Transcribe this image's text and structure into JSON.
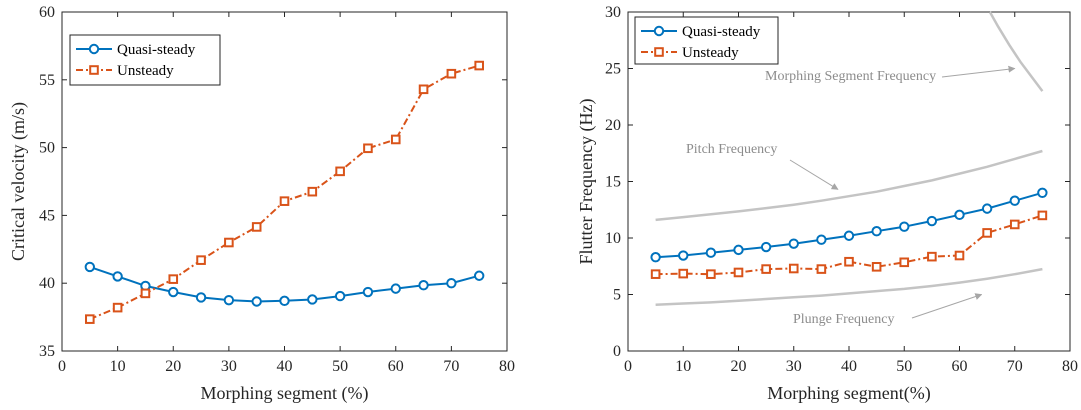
{
  "chart_data": [
    {
      "type": "line",
      "xlabel": "Morphing segment (%)",
      "ylabel": "Critical velocity (m/s)",
      "xlim": [
        0,
        80
      ],
      "ylim": [
        35,
        60
      ],
      "xticks": [
        0,
        10,
        20,
        30,
        40,
        50,
        60,
        70,
        80
      ],
      "yticks": [
        35,
        40,
        45,
        50,
        55,
        60
      ],
      "grid": false,
      "legend_position": "top-left",
      "x": [
        5,
        10,
        15,
        20,
        25,
        30,
        35,
        40,
        45,
        50,
        55,
        60,
        65,
        70,
        75
      ],
      "series": [
        {
          "name": "Quasi-steady",
          "color": "#0072BD",
          "marker": "circle",
          "line_style": "solid",
          "values": [
            41.2,
            40.5,
            39.8,
            39.35,
            38.95,
            38.75,
            38.65,
            38.7,
            38.8,
            39.05,
            39.35,
            39.6,
            39.85,
            40.0,
            40.55
          ]
        },
        {
          "name": "Unsteady",
          "color": "#D95319",
          "marker": "square",
          "line_style": "dash-dot",
          "values": [
            37.35,
            38.2,
            39.25,
            40.3,
            41.7,
            43.0,
            44.15,
            46.05,
            46.75,
            48.25,
            49.95,
            50.6,
            54.3,
            55.45,
            56.05
          ]
        }
      ]
    },
    {
      "type": "line",
      "xlabel": "Morphing segment(%)",
      "ylabel": "Flutter Frequency (Hz)",
      "xlim": [
        0,
        80
      ],
      "ylim": [
        0,
        30
      ],
      "xticks": [
        0,
        10,
        20,
        30,
        40,
        50,
        60,
        70,
        80
      ],
      "yticks": [
        0,
        5,
        10,
        15,
        20,
        25,
        30
      ],
      "grid": false,
      "legend_position": "top-left",
      "x": [
        5,
        10,
        15,
        20,
        25,
        30,
        35,
        40,
        45,
        50,
        55,
        60,
        65,
        70,
        75
      ],
      "series": [
        {
          "name": "Quasi-steady",
          "color": "#0072BD",
          "marker": "circle",
          "line_style": "solid",
          "values": [
            8.3,
            8.45,
            8.7,
            8.95,
            9.2,
            9.5,
            9.85,
            10.2,
            10.6,
            11.0,
            11.5,
            12.05,
            12.6,
            13.3,
            14.0
          ]
        },
        {
          "name": "Unsteady",
          "color": "#D95319",
          "marker": "square",
          "line_style": "dash-dot",
          "values": [
            6.8,
            6.85,
            6.8,
            6.95,
            7.25,
            7.3,
            7.25,
            7.9,
            7.45,
            7.85,
            8.35,
            8.45,
            10.45,
            11.2,
            12.0
          ]
        }
      ],
      "reference_curves": [
        {
          "label": "Morphing Segment Frequency",
          "color": "#c4c4c4",
          "x": [
            65.5,
            67,
            69,
            71,
            73,
            75
          ],
          "values": [
            30.2,
            28.7,
            27.1,
            25.6,
            24.3,
            23.0
          ]
        },
        {
          "label": "Pitch Frequency",
          "color": "#c4c4c4",
          "x": [
            5,
            10,
            15,
            20,
            25,
            30,
            35,
            40,
            45,
            50,
            55,
            60,
            65,
            70,
            75
          ],
          "values": [
            11.6,
            11.85,
            12.1,
            12.35,
            12.65,
            12.95,
            13.3,
            13.7,
            14.1,
            14.6,
            15.1,
            15.7,
            16.3,
            17.0,
            17.7
          ]
        },
        {
          "label": "Plunge Frequency",
          "color": "#c4c4c4",
          "x": [
            5,
            10,
            15,
            20,
            25,
            30,
            35,
            40,
            45,
            50,
            55,
            60,
            65,
            70,
            75
          ],
          "values": [
            4.1,
            4.2,
            4.3,
            4.45,
            4.6,
            4.75,
            4.9,
            5.1,
            5.3,
            5.5,
            5.75,
            6.05,
            6.4,
            6.8,
            7.25
          ]
        }
      ],
      "annotations": [
        {
          "text": "Morphing Segment Frequency",
          "points_to_x": 70,
          "points_to_y": 25
        },
        {
          "text": "Pitch Frequency",
          "points_to_x": 38,
          "points_to_y": 14.3
        },
        {
          "text": "Plunge Frequency",
          "points_to_x": 64,
          "points_to_y": 5.0
        }
      ]
    }
  ]
}
